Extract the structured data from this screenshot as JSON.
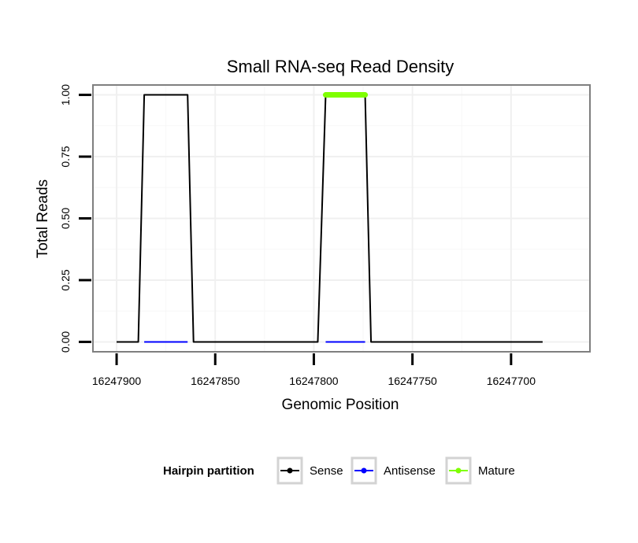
{
  "chart_data": {
    "type": "line",
    "title": "Small RNA-seq Read Density",
    "xlabel": "Genomic Position",
    "ylabel": "Total Reads",
    "x_reversed": true,
    "xlim": [
      16247912,
      16247660
    ],
    "ylim": [
      -0.04,
      1.04
    ],
    "x_ticks": [
      16247900,
      16247850,
      16247800,
      16247750,
      16247700
    ],
    "x_tick_labels": [
      "16247900",
      "16247850",
      "16247800",
      "16247750",
      "16247700"
    ],
    "y_ticks": [
      0,
      0.25,
      0.5,
      0.75,
      1.0
    ],
    "y_tick_labels": [
      "0.00",
      "0.25",
      "0.50",
      "0.75",
      "1.00"
    ],
    "grid": true,
    "legend_position": "bottom",
    "legend_title": "Hairpin partition",
    "series": [
      {
        "name": "Sense",
        "color": "#000000",
        "points": [
          [
            16247900,
            0
          ],
          [
            16247889,
            0
          ],
          [
            16247886,
            1
          ],
          [
            16247864,
            1
          ],
          [
            16247861,
            0
          ],
          [
            16247798,
            0
          ],
          [
            16247794,
            1
          ],
          [
            16247774,
            1
          ],
          [
            16247771,
            0
          ],
          [
            16247697,
            0
          ],
          [
            16247684,
            0
          ]
        ]
      },
      {
        "name": "Antisense",
        "color": "#0000ff",
        "points": [
          [
            16247886,
            0
          ],
          [
            16247864,
            0
          ],
          [
            16247794,
            0
          ],
          [
            16247774,
            0
          ]
        ],
        "segments": [
          [
            0,
            1
          ],
          [
            2,
            3
          ]
        ]
      },
      {
        "name": "Mature",
        "color": "#7fff00",
        "points": [
          [
            16247794,
            1
          ],
          [
            16247774,
            1
          ]
        ]
      }
    ]
  }
}
